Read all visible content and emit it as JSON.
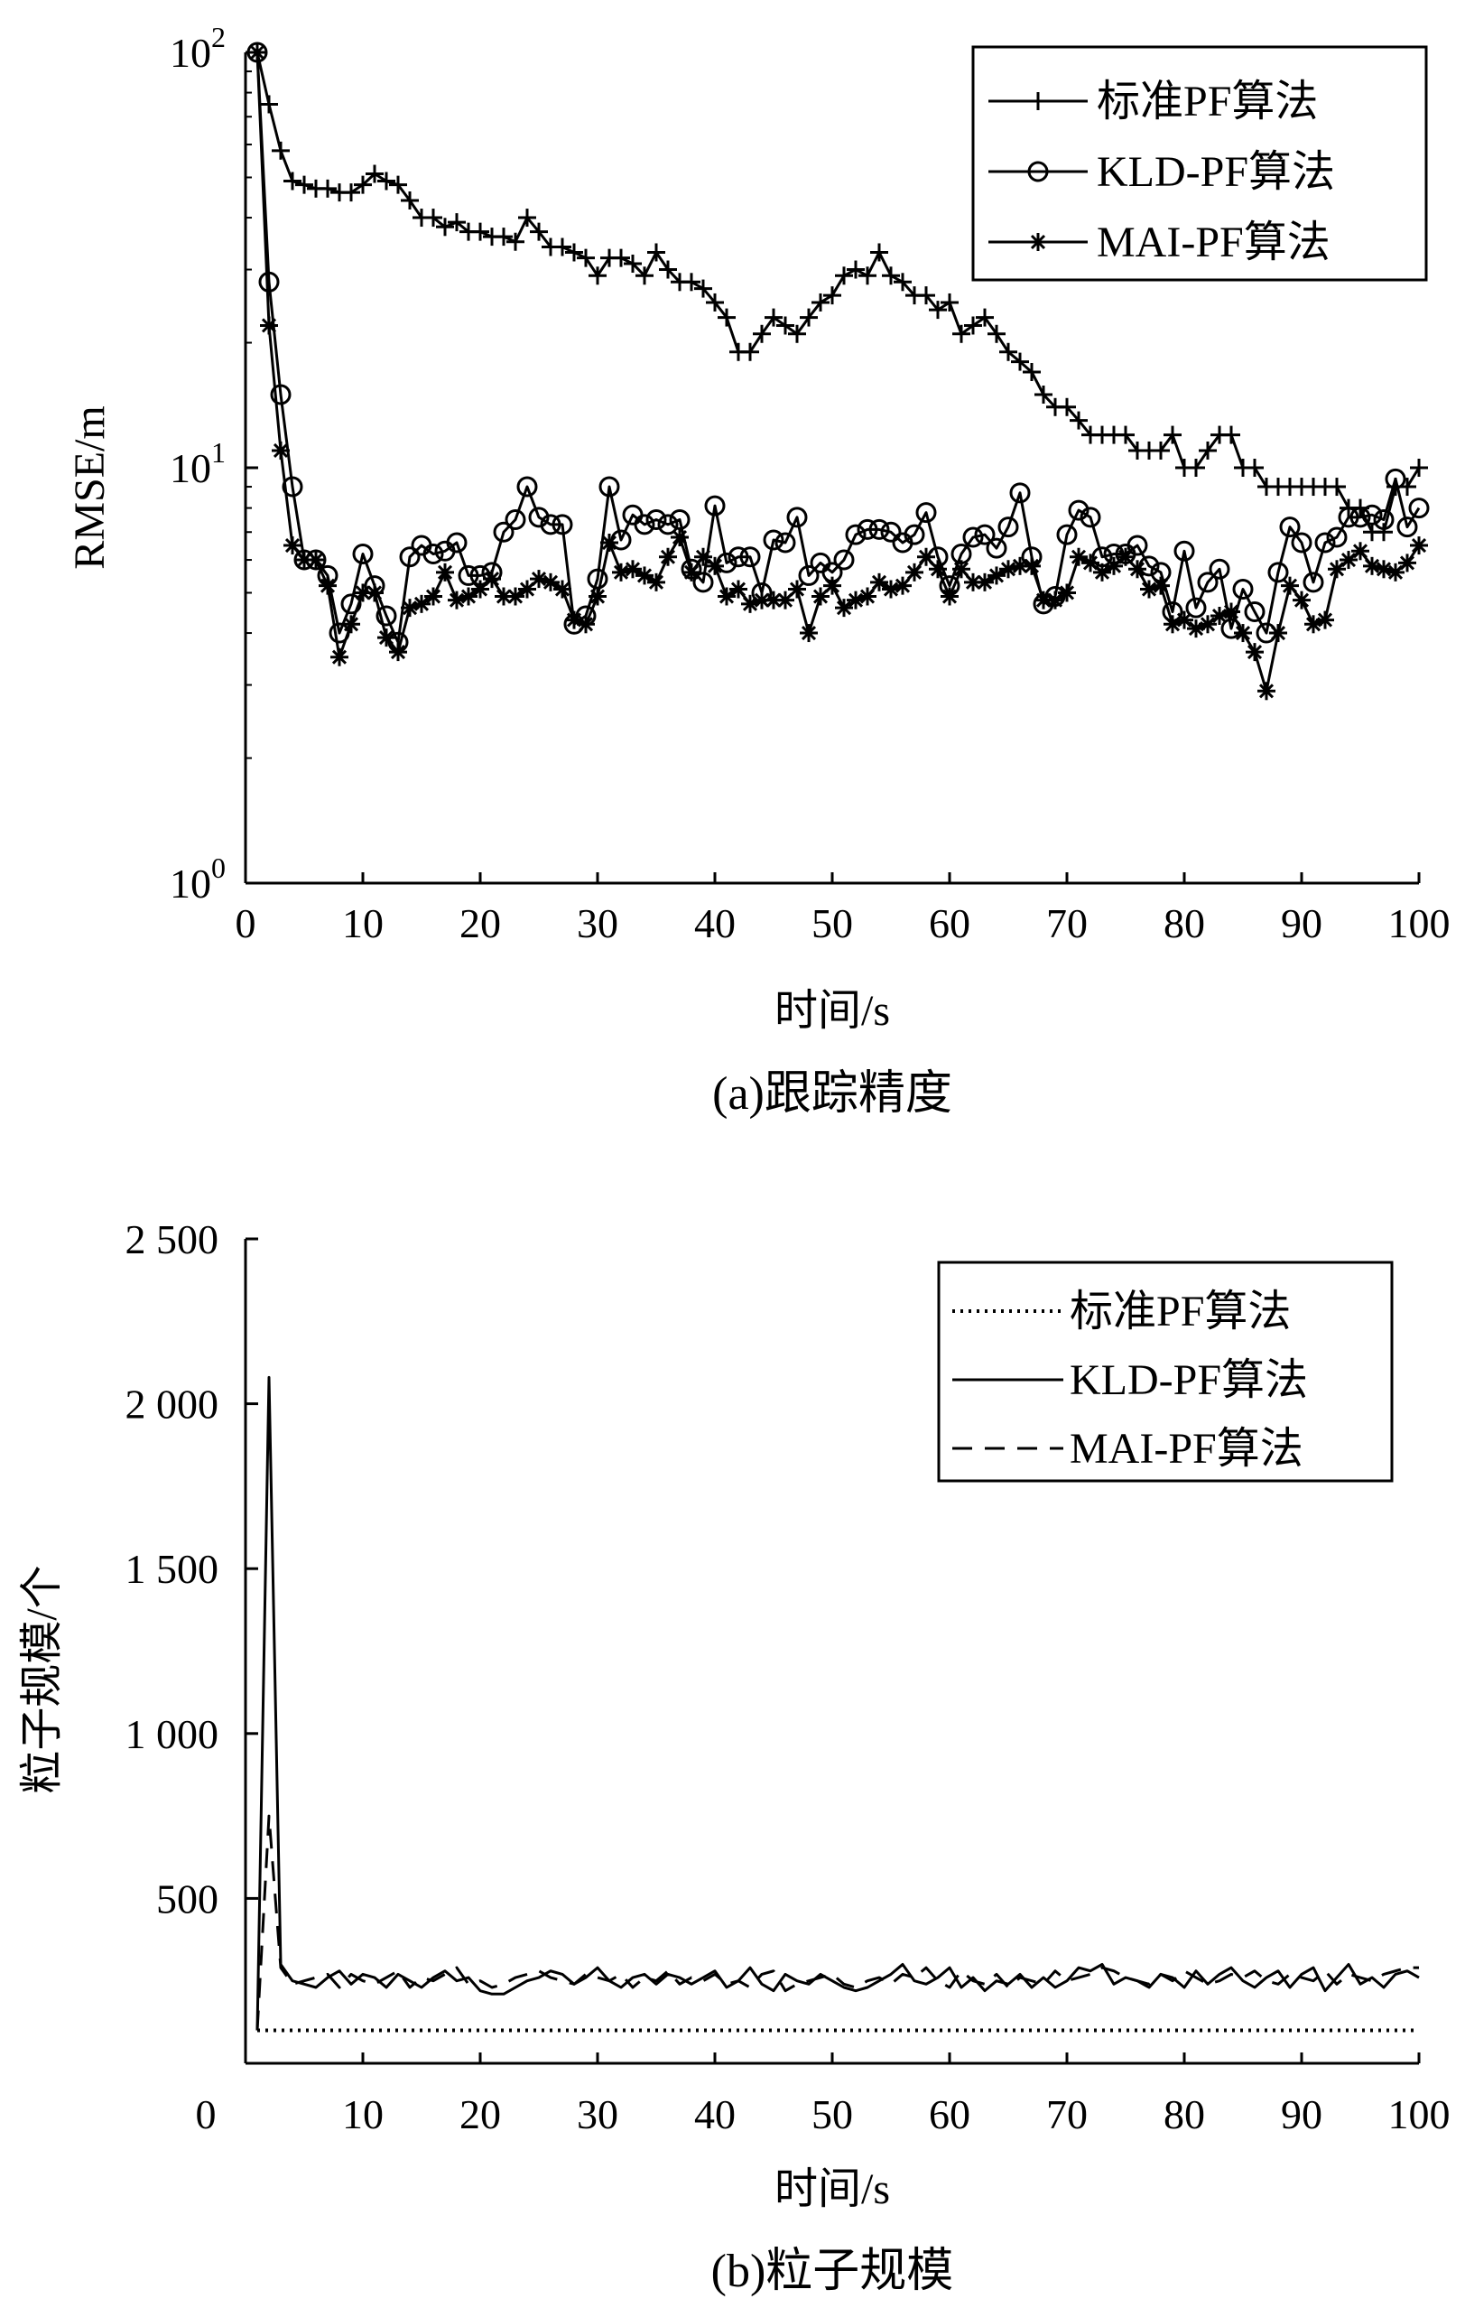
{
  "chart_data": [
    {
      "type": "line",
      "caption": "(a)跟踪精度",
      "xlabel": "时间/s",
      "ylabel": "RMSE/m",
      "xlim": [
        0,
        100
      ],
      "ylim": [
        1,
        100
      ],
      "yscale": "log",
      "xticks": [
        "0",
        "10",
        "20",
        "30",
        "40",
        "50",
        "60",
        "70",
        "80",
        "90",
        "100"
      ],
      "yticks": [
        {
          "base": "10",
          "exp": "0"
        },
        {
          "base": "10",
          "exp": "1"
        },
        {
          "base": "10",
          "exp": "2"
        }
      ],
      "legend_position": "top-right",
      "x": [
        1,
        2,
        3,
        4,
        5,
        6,
        7,
        8,
        9,
        10,
        11,
        12,
        13,
        14,
        15,
        16,
        17,
        18,
        19,
        20,
        21,
        22,
        23,
        24,
        25,
        26,
        27,
        28,
        29,
        30,
        31,
        32,
        33,
        34,
        35,
        36,
        37,
        38,
        39,
        40,
        41,
        42,
        43,
        44,
        45,
        46,
        47,
        48,
        49,
        50,
        51,
        52,
        53,
        54,
        55,
        56,
        57,
        58,
        59,
        60,
        61,
        62,
        63,
        64,
        65,
        66,
        67,
        68,
        69,
        70,
        71,
        72,
        73,
        74,
        75,
        76,
        77,
        78,
        79,
        80,
        81,
        82,
        83,
        84,
        85,
        86,
        87,
        88,
        89,
        90,
        91,
        92,
        93,
        94,
        95,
        96,
        97,
        98,
        99,
        100
      ],
      "series": [
        {
          "name": "标准PF算法",
          "marker": "plus",
          "values": [
            100,
            75,
            58,
            49,
            48,
            47,
            47,
            46,
            46,
            48,
            51,
            49,
            48,
            44,
            40,
            40,
            38,
            39,
            37,
            37,
            36,
            36,
            35,
            40,
            37,
            34,
            34,
            33,
            32,
            29,
            32,
            32,
            31,
            29,
            33,
            30,
            28,
            28,
            27,
            25,
            23,
            19,
            19,
            21,
            23,
            22,
            21,
            23,
            25,
            26,
            29,
            30,
            29,
            33,
            29,
            28,
            26,
            26,
            24,
            25,
            21,
            22,
            23,
            21,
            19,
            18,
            17,
            15,
            14,
            14,
            13,
            12,
            12,
            12,
            12,
            11,
            11,
            11,
            12,
            10,
            10,
            11,
            12,
            12,
            10,
            10,
            9,
            9,
            9,
            9,
            9,
            9,
            9,
            8,
            8,
            7,
            7,
            9,
            9,
            10
          ]
        },
        {
          "name": "KLD-PF算法",
          "marker": "circle",
          "values": [
            100,
            28,
            15,
            9,
            6,
            6,
            5.5,
            4,
            4.7,
            6.2,
            5.2,
            4.4,
            3.8,
            6.1,
            6.5,
            6.2,
            6.3,
            6.6,
            5.5,
            5.5,
            5.6,
            7,
            7.5,
            9,
            7.6,
            7.3,
            7.3,
            4.2,
            4.4,
            5.4,
            9,
            6.7,
            7.7,
            7.3,
            7.5,
            7.3,
            7.5,
            5.7,
            5.3,
            8.1,
            5.9,
            6.1,
            6.1,
            5,
            6.7,
            6.6,
            7.6,
            5.5,
            5.9,
            5.6,
            6,
            6.9,
            7.1,
            7.1,
            7,
            6.6,
            6.9,
            7.8,
            6.1,
            5.2,
            6.2,
            6.8,
            6.9,
            6.4,
            7.2,
            8.7,
            6.1,
            4.7,
            4.9,
            6.9,
            7.9,
            7.6,
            6.1,
            6.2,
            6.2,
            6.5,
            5.8,
            5.6,
            4.5,
            6.3,
            4.6,
            5.3,
            5.7,
            4.1,
            5.1,
            4.5,
            4,
            5.6,
            7.2,
            6.6,
            5.3,
            6.6,
            6.8,
            7.6,
            7.6,
            7.7,
            7.5,
            9.4,
            7.2,
            8
          ]
        },
        {
          "name": "MAI-PF算法",
          "marker": "asterisk",
          "values": [
            100,
            22,
            11,
            6.5,
            6,
            6,
            5.2,
            3.5,
            4.2,
            5,
            5,
            3.9,
            3.6,
            4.6,
            4.7,
            4.9,
            5.6,
            4.8,
            4.9,
            5.1,
            5.4,
            4.9,
            4.9,
            5.1,
            5.4,
            5.3,
            5.1,
            4.3,
            4.2,
            4.9,
            6.6,
            5.6,
            5.7,
            5.5,
            5.3,
            6.1,
            6.8,
            5.6,
            6.1,
            5.8,
            4.9,
            5.1,
            4.7,
            4.8,
            4.8,
            4.8,
            5.1,
            4,
            4.9,
            5.2,
            4.6,
            4.8,
            4.9,
            5.3,
            5.1,
            5.2,
            5.6,
            6.1,
            5.7,
            4.9,
            5.7,
            5.3,
            5.3,
            5.5,
            5.7,
            5.8,
            5.8,
            4.8,
            4.8,
            5,
            6.1,
            5.9,
            5.6,
            5.8,
            6.1,
            5.7,
            5.1,
            5.2,
            4.2,
            4.3,
            4.1,
            4.2,
            4.4,
            4.5,
            4,
            3.6,
            2.9,
            4,
            5.2,
            4.8,
            4.2,
            4.3,
            5.7,
            6,
            6.3,
            5.8,
            5.7,
            5.6,
            5.9,
            6.5
          ]
        }
      ]
    },
    {
      "type": "line",
      "caption": "(b)粒子规模",
      "xlabel": "时间/s",
      "ylabel": "粒子规模/个",
      "xlim": [
        0,
        100
      ],
      "ylim": [
        0,
        2500
      ],
      "xticks": [
        "0",
        "10",
        "20",
        "30",
        "40",
        "50",
        "60",
        "70",
        "80",
        "90",
        "100"
      ],
      "yticks": [
        "500",
        "1 000",
        "1 500",
        "2 000",
        "2 500"
      ],
      "legend_position": "top-right",
      "x": [
        1,
        2,
        3,
        4,
        5,
        6,
        7,
        8,
        9,
        10,
        11,
        12,
        13,
        14,
        15,
        16,
        17,
        18,
        19,
        20,
        21,
        22,
        23,
        24,
        25,
        26,
        27,
        28,
        29,
        30,
        31,
        32,
        33,
        34,
        35,
        36,
        37,
        38,
        39,
        40,
        41,
        42,
        43,
        44,
        45,
        46,
        47,
        48,
        49,
        50,
        51,
        52,
        53,
        54,
        55,
        56,
        57,
        58,
        59,
        60,
        61,
        62,
        63,
        64,
        65,
        66,
        67,
        68,
        69,
        70,
        71,
        72,
        73,
        74,
        75,
        76,
        77,
        78,
        79,
        80,
        81,
        82,
        83,
        84,
        85,
        86,
        87,
        88,
        89,
        90,
        91,
        92,
        93,
        94,
        95,
        96,
        97,
        98,
        99,
        100
      ],
      "series": [
        {
          "name": "标准PF算法",
          "style": "dotted",
          "values": [
            100,
            100,
            100,
            100,
            100,
            100,
            100,
            100,
            100,
            100,
            100,
            100,
            100,
            100,
            100,
            100,
            100,
            100,
            100,
            100,
            100,
            100,
            100,
            100,
            100,
            100,
            100,
            100,
            100,
            100,
            100,
            100,
            100,
            100,
            100,
            100,
            100,
            100,
            100,
            100,
            100,
            100,
            100,
            100,
            100,
            100,
            100,
            100,
            100,
            100,
            100,
            100,
            100,
            100,
            100,
            100,
            100,
            100,
            100,
            100,
            100,
            100,
            100,
            100,
            100,
            100,
            100,
            100,
            100,
            100,
            100,
            100,
            100,
            100,
            100,
            100,
            100,
            100,
            100,
            100,
            100,
            100,
            100,
            100,
            100,
            100,
            100,
            100,
            100,
            100,
            100,
            100,
            100,
            100,
            100,
            100,
            100,
            100,
            100,
            100
          ]
        },
        {
          "name": "KLD-PF算法",
          "style": "solid",
          "values": [
            100,
            2080,
            300,
            250,
            240,
            230,
            260,
            280,
            240,
            270,
            260,
            230,
            270,
            250,
            230,
            260,
            280,
            250,
            260,
            220,
            210,
            210,
            230,
            250,
            260,
            280,
            270,
            240,
            260,
            290,
            250,
            230,
            260,
            270,
            240,
            270,
            260,
            240,
            260,
            280,
            230,
            250,
            290,
            240,
            220,
            270,
            250,
            240,
            270,
            250,
            230,
            220,
            230,
            250,
            270,
            300,
            250,
            240,
            260,
            290,
            230,
            260,
            220,
            250,
            240,
            270,
            230,
            260,
            230,
            250,
            290,
            280,
            300,
            240,
            260,
            250,
            230,
            270,
            260,
            230,
            280,
            240,
            270,
            290,
            250,
            230,
            260,
            280,
            230,
            270,
            290,
            220,
            260,
            300,
            240,
            260,
            230,
            270,
            280,
            260
          ]
        },
        {
          "name": "MAI-PF算法",
          "style": "dashed",
          "values": [
            100,
            750,
            290,
            240,
            250,
            260,
            270,
            230,
            270,
            250,
            240,
            260,
            280,
            230,
            260,
            250,
            270,
            290,
            240,
            250,
            230,
            240,
            260,
            270,
            280,
            260,
            250,
            240,
            270,
            260,
            250,
            270,
            230,
            260,
            250,
            280,
            240,
            260,
            250,
            270,
            240,
            250,
            230,
            270,
            280,
            220,
            240,
            250,
            260,
            270,
            240,
            230,
            250,
            260,
            240,
            270,
            260,
            290,
            250,
            230,
            280,
            250,
            240,
            270,
            230,
            260,
            250,
            240,
            280,
            250,
            260,
            270,
            290,
            280,
            260,
            250,
            240,
            270,
            250,
            280,
            260,
            240,
            250,
            270,
            260,
            280,
            250,
            240,
            270,
            260,
            250,
            280,
            240,
            270,
            260,
            250,
            270,
            280,
            290,
            290
          ]
        }
      ]
    }
  ]
}
